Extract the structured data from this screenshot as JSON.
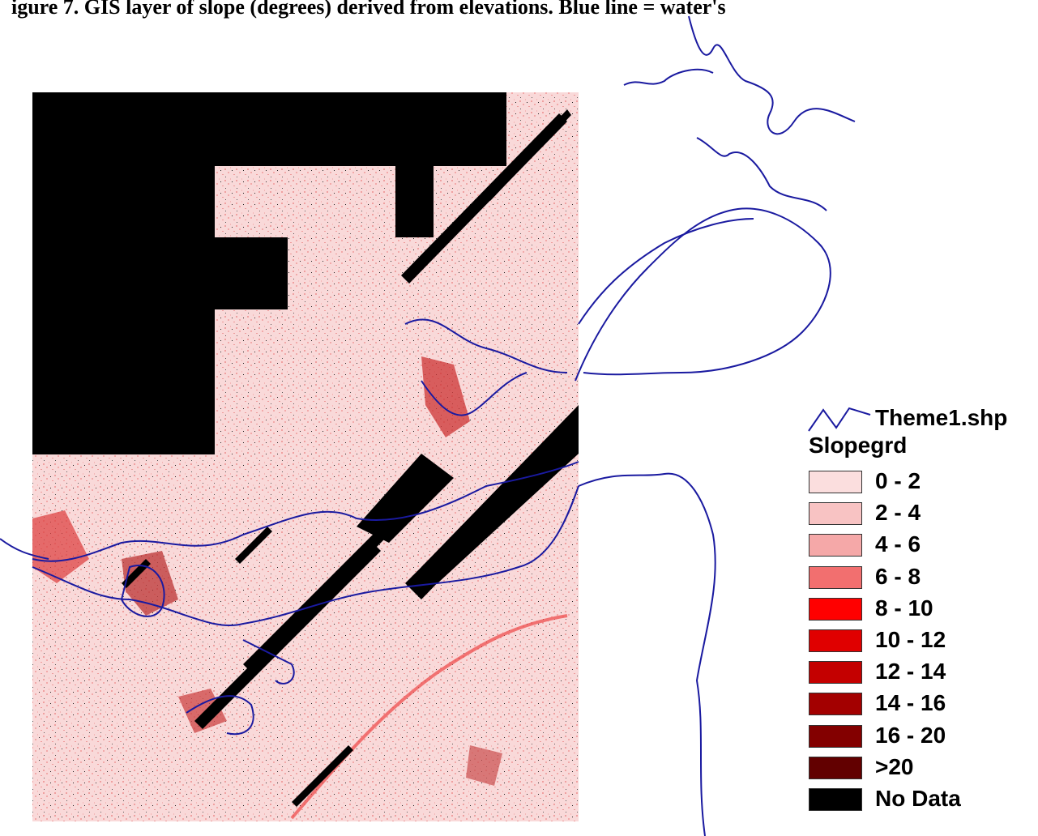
{
  "caption": {
    "text": "igure 7. GIS layer of slope (degrees) derived from               elevations. Blue line = water's"
  },
  "map": {
    "no_data_color": "#000000",
    "shoreline_color": "#1a1aa0",
    "base_slope_color": "#f7d3d3"
  },
  "legend": {
    "line_theme_label": "Theme1.shp",
    "line_theme_color": "#1a1aa0",
    "grid_title": "Slopegrd",
    "classes": [
      {
        "label": "0 - 2",
        "color": "#fbdede"
      },
      {
        "label": "2 - 4",
        "color": "#f8c3c3"
      },
      {
        "label": "4 - 6",
        "color": "#f5a8a8"
      },
      {
        "label": "6 - 8",
        "color": "#f26f6f"
      },
      {
        "label": "8 - 10",
        "color": "#ff0000"
      },
      {
        "label": "10 - 12",
        "color": "#e00000"
      },
      {
        "label": "12 - 14",
        "color": "#c40000"
      },
      {
        "label": "14 - 16",
        "color": "#a30000"
      },
      {
        "label": "16 - 20",
        "color": "#830000"
      },
      {
        "label": ">20",
        "color": "#620000"
      },
      {
        "label": "No Data",
        "color": "#000000"
      }
    ]
  }
}
